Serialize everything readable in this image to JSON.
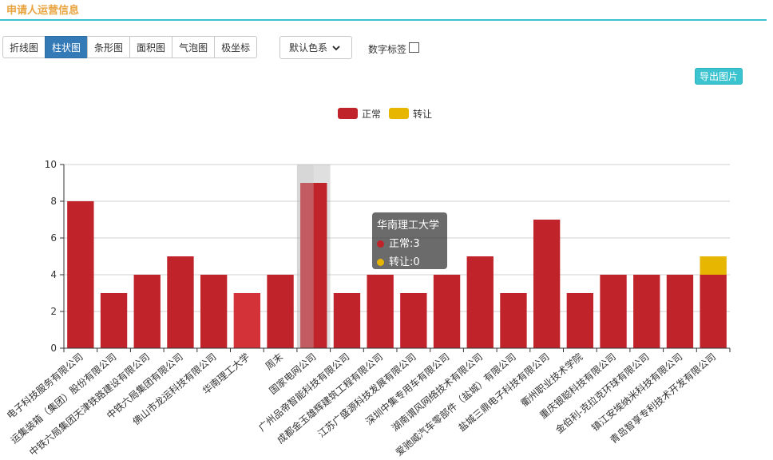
{
  "header": {
    "title": "申请人运营信息"
  },
  "toolbar": {
    "chart_types": [
      "折线图",
      "柱状图",
      "条形图",
      "面积图",
      "气泡图",
      "极坐标"
    ],
    "active_index": 1,
    "color_scheme": "默认色系",
    "label_toggle": "数字标签",
    "label_checked": false,
    "export": "导出图片"
  },
  "tooltip": {
    "title": "华南理工大学",
    "rows": [
      {
        "name": "正常",
        "value": "3"
      },
      {
        "name": "转让",
        "value": "0"
      }
    ]
  },
  "chart_data": {
    "type": "bar",
    "stacked": true,
    "categories": [
      "电子科技服务有限公司",
      "运集装箱（集团）股份有限公司",
      "中铁六局集团天津铁路建设有限公司",
      "中铁六局集团有限公司",
      "佛山市龙运科技有限公司",
      "华南理工大学",
      "周末",
      "国家电网公司",
      "广州品帝智能科技有限公司",
      "成都金玉雄辉建筑工程有限公司",
      "江苏广盛源科技发展有限公司",
      "深圳中集专用车有限公司",
      "湖南谓风网络技术有限公司",
      "爱驰威汽车零部件（盐城）有限公司",
      "盐城三鼎电子科技有限公司",
      "衢州职业技术学院",
      "重庆银聪科技有限公司",
      "金伯利-克拉克环球有限公司",
      "镇江安埃纳米科技有限公司",
      "青岛智享专利技术开发有限公司"
    ],
    "series": [
      {
        "name": "正常",
        "color": "#c1232b",
        "values": [
          8,
          3,
          4,
          5,
          4,
          3,
          4,
          9,
          3,
          4,
          3,
          4,
          5,
          3,
          7,
          3,
          4,
          4,
          4,
          4
        ]
      },
      {
        "name": "转让",
        "color": "#e6b600",
        "values": [
          0,
          0,
          0,
          0,
          0,
          0,
          0,
          0,
          0,
          0,
          0,
          0,
          0,
          0,
          0,
          0,
          0,
          0,
          0,
          1
        ]
      }
    ],
    "ylim": [
      0,
      10
    ],
    "yticks": [
      0,
      2,
      4,
      6,
      8,
      10
    ],
    "grid": true,
    "legend": "top-center",
    "highlight_index": 5,
    "axis_pointer_index": 7
  }
}
